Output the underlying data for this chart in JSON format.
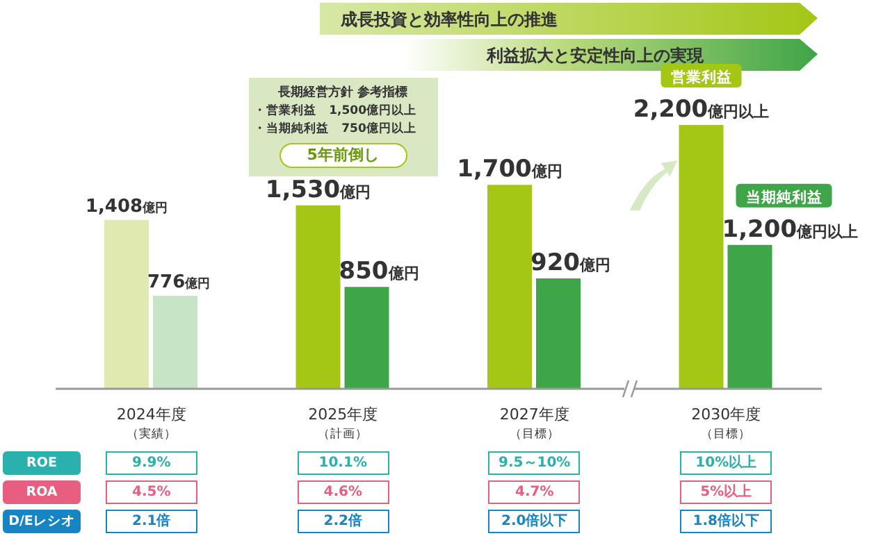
{
  "chart_data": {
    "type": "bar",
    "categories": [
      "2024年度（実績）",
      "2025年度（計画）",
      "2027年度（目標）",
      "2030年度（目標）"
    ],
    "series": [
      {
        "name": "営業利益",
        "color": "#a4c615",
        "colors": [
          "#dfe9b0",
          "#a4c615",
          "#a4c615",
          "#a4c615"
        ],
        "values": [
          1408,
          1530,
          1700,
          2200
        ],
        "value_labels": [
          "1,408億円",
          "1,530億円",
          "1,700億円",
          "2,200億円以上"
        ]
      },
      {
        "name": "当期純利益",
        "color": "#3ea548",
        "colors": [
          "#c8e4c6",
          "#3ea548",
          "#3ea548",
          "#3ea548"
        ],
        "values": [
          776,
          850,
          920,
          1200
        ],
        "value_labels": [
          "776億円",
          "850億円",
          "920億円",
          "1,200億円以上"
        ]
      }
    ],
    "annotations": [
      "成長投資と効率性向上の推進",
      "利益拡大と安定性向上の実現",
      "長期経営方針 参考指標",
      "・営業利益　1,500億円以上",
      "・当期純利益　750億円以上",
      "5年前倒し",
      "ROE",
      "9.9%",
      "10.1%",
      "9.5～10%",
      "10%以上",
      "ROA",
      "4.5%",
      "4.6%",
      "4.7%",
      "5%以上",
      "D/Eレシオ",
      "2.1倍",
      "2.2倍",
      "2.0倍以下",
      "1.8倍以下"
    ]
  }
}
